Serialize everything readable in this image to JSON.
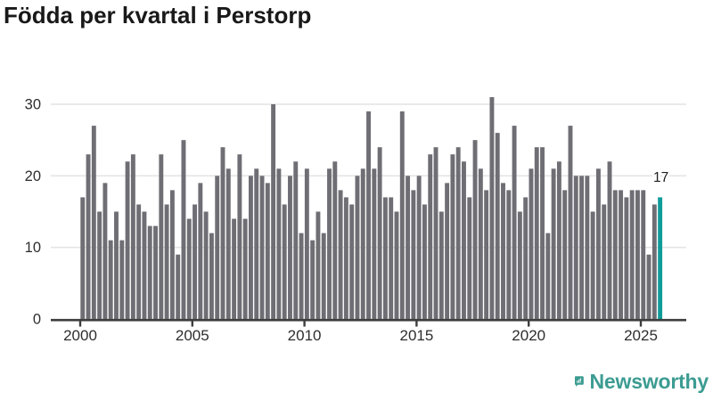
{
  "header": {
    "title": "Födda per kvartal i Perstorp"
  },
  "chart_data": {
    "type": "bar",
    "title": "Födda per kvartal i Perstorp",
    "start_year": 2000,
    "quarters_per_year": 4,
    "values": [
      17,
      23,
      27,
      15,
      19,
      11,
      15,
      11,
      22,
      23,
      16,
      15,
      13,
      13,
      23,
      16,
      18,
      9,
      25,
      14,
      16,
      19,
      15,
      12,
      20,
      24,
      21,
      14,
      23,
      14,
      20,
      21,
      20,
      19,
      30,
      21,
      16,
      20,
      22,
      12,
      21,
      11,
      15,
      12,
      21,
      22,
      18,
      17,
      16,
      20,
      21,
      29,
      21,
      24,
      17,
      17,
      15,
      29,
      20,
      18,
      20,
      16,
      23,
      24,
      15,
      19,
      23,
      24,
      22,
      17,
      25,
      21,
      18,
      31,
      26,
      19,
      18,
      27,
      15,
      17,
      21,
      24,
      24,
      12,
      21,
      22,
      18,
      27,
      20,
      20,
      20,
      15,
      21,
      16,
      22,
      18,
      18,
      17,
      18,
      18,
      18,
      9,
      16,
      17
    ],
    "x_tick_labels": [
      "2000",
      "2005",
      "2010",
      "2015",
      "2020",
      "2025"
    ],
    "y_ticks": [
      0,
      10,
      20,
      30
    ],
    "y_tick_labels": [
      "0",
      "10",
      "20",
      "30"
    ],
    "ylim": [
      0,
      31
    ],
    "grid": "horizontal",
    "legend": "none",
    "bar_color": "#6e6e74",
    "highlight": {
      "index": 103,
      "label": "17",
      "color": "#0f9c99"
    }
  },
  "footer": {
    "brand": "Newsworthy",
    "logo_icon": "newsworthy-chart-bubble-icon",
    "brand_color": "#3c9c92"
  },
  "colors": {
    "title_text": "#191919",
    "axis_text": "#2e2e2e",
    "gridline": "#e4e4e4",
    "axis_line": "#3d3d3d",
    "background": "#ffffff"
  }
}
